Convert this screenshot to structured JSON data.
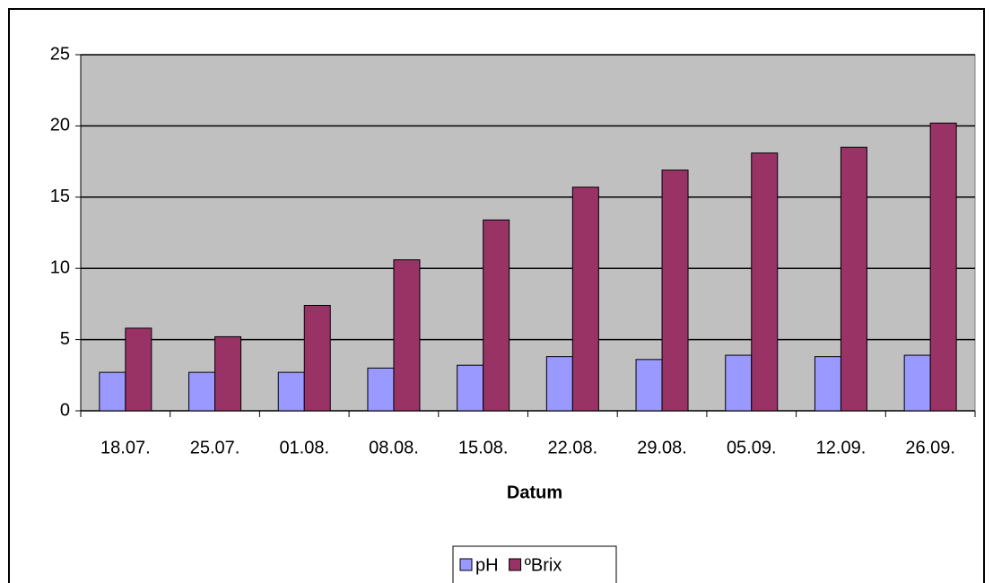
{
  "chart_data": {
    "type": "bar",
    "x_label": "Datum",
    "categories": [
      "18.07.",
      "25.07.",
      "01.08.",
      "08.08.",
      "15.08.",
      "22.08.",
      "29.08.",
      "05.09.",
      "12.09.",
      "26.09."
    ],
    "series": [
      {
        "name": "pH",
        "color": "#9999ff",
        "values": [
          2.7,
          2.7,
          2.7,
          3.0,
          3.2,
          3.8,
          3.6,
          3.9,
          3.8,
          3.9
        ]
      },
      {
        "name": "ºBrix",
        "color": "#993366",
        "values": [
          5.8,
          5.2,
          7.4,
          10.6,
          13.4,
          15.7,
          16.9,
          18.1,
          18.5,
          20.2
        ]
      }
    ],
    "ylim": [
      0,
      25
    ],
    "yticks": [
      0,
      5,
      10,
      15,
      20,
      25
    ],
    "grid": true,
    "legend": "bottom"
  }
}
